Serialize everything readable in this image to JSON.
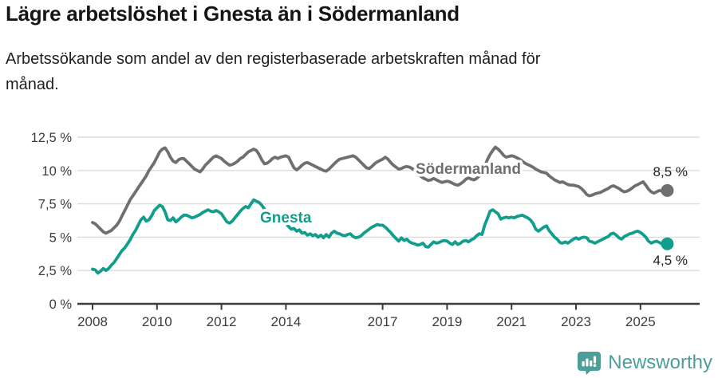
{
  "header": {
    "title": "Lägre arbetslöshet i Gnesta än i Södermanland",
    "subtitle": "Arbetssökande som andel av den registerbaserade arbetskraften månad för månad."
  },
  "footer": {
    "brand": "Newsworthy",
    "brand_color": "#4d9e99",
    "logo_icon": "bar-chart-speech-bubble-icon"
  },
  "chart_data": {
    "type": "line",
    "title": "Lägre arbetslöshet i Gnesta än i Södermanland",
    "subtitle": "Arbetssökande som andel av den registerbaserade arbetskraften månad för månad.",
    "x_unit": "month",
    "x_start": "2008-01",
    "x_end": "2025-11",
    "x_tick_years": [
      2008,
      2010,
      2012,
      2014,
      2017,
      2019,
      2021,
      2023,
      2025
    ],
    "x_tick_labels": [
      "2008",
      "2010",
      "2012",
      "2014",
      "2017",
      "2019",
      "2021",
      "2023",
      "2025"
    ],
    "ylim": [
      0,
      12.5
    ],
    "y_tick_values": [
      0,
      2.5,
      5,
      7.5,
      10,
      12.5
    ],
    "y_tick_labels": [
      "0 %",
      "2,5 %",
      "5 %",
      "7,5 %",
      "10 %",
      "12,5 %"
    ],
    "grid": true,
    "legend": "inline-labels",
    "axis_color": "#3c3c3e",
    "grid_color": "#dcdcdc",
    "value_label_color": "#222222",
    "series": [
      {
        "name": "Södermanland",
        "color": "#6e6f72",
        "end_label": "8,5 %",
        "end_value": 8.5,
        "values": [
          6.1,
          6.0,
          5.8,
          5.6,
          5.4,
          5.3,
          5.4,
          5.5,
          5.7,
          5.9,
          6.2,
          6.6,
          7.0,
          7.4,
          7.8,
          8.1,
          8.4,
          8.7,
          9.0,
          9.3,
          9.6,
          10.0,
          10.3,
          10.6,
          11.0,
          11.4,
          11.6,
          11.7,
          11.4,
          11.0,
          10.7,
          10.6,
          10.8,
          10.9,
          10.9,
          10.7,
          10.5,
          10.3,
          10.1,
          10.0,
          9.9,
          10.1,
          10.4,
          10.6,
          10.8,
          11.0,
          11.1,
          11.0,
          10.9,
          10.7,
          10.55,
          10.4,
          10.45,
          10.55,
          10.7,
          10.9,
          11.0,
          11.2,
          11.4,
          11.5,
          11.6,
          11.5,
          11.2,
          10.8,
          10.5,
          10.55,
          10.7,
          10.9,
          11.0,
          10.9,
          11.0,
          11.05,
          11.1,
          11.0,
          10.6,
          10.2,
          10.05,
          10.2,
          10.4,
          10.55,
          10.6,
          10.5,
          10.4,
          10.3,
          10.2,
          10.1,
          10.0,
          9.95,
          10.1,
          10.3,
          10.5,
          10.7,
          10.85,
          10.9,
          10.95,
          11.0,
          11.05,
          11.1,
          11.0,
          10.8,
          10.6,
          10.4,
          10.2,
          10.15,
          10.3,
          10.5,
          10.65,
          10.75,
          10.85,
          11.0,
          10.85,
          10.6,
          10.4,
          10.25,
          10.1,
          10.15,
          10.25,
          10.3,
          10.25,
          10.15,
          10.0,
          9.8,
          9.6,
          9.45,
          9.35,
          9.25,
          9.3,
          9.4,
          9.3,
          9.2,
          9.1,
          9.15,
          9.2,
          9.15,
          9.05,
          8.95,
          8.9,
          9.0,
          9.15,
          9.35,
          9.45,
          9.35,
          9.3,
          9.4,
          9.6,
          9.9,
          10.3,
          10.8,
          11.2,
          11.5,
          11.75,
          11.6,
          11.4,
          11.15,
          11.0,
          11.05,
          11.1,
          11.05,
          10.95,
          10.85,
          10.7,
          10.55,
          10.45,
          10.35,
          10.25,
          10.1,
          10.0,
          9.9,
          9.85,
          9.8,
          9.6,
          9.45,
          9.3,
          9.2,
          9.1,
          9.15,
          9.05,
          8.95,
          8.9,
          8.9,
          8.85,
          8.8,
          8.65,
          8.45,
          8.2,
          8.1,
          8.15,
          8.25,
          8.3,
          8.35,
          8.45,
          8.55,
          8.65,
          8.8,
          8.85,
          8.75,
          8.65,
          8.5,
          8.4,
          8.45,
          8.55,
          8.7,
          8.85,
          8.95,
          9.05,
          9.15,
          8.9,
          8.6,
          8.4,
          8.3,
          8.4,
          8.5,
          8.45,
          8.4,
          8.5
        ]
      },
      {
        "name": "Gnesta",
        "color": "#119e8c",
        "end_label": "4,5 %",
        "end_value": 4.5,
        "values": [
          2.6,
          2.55,
          2.3,
          2.45,
          2.65,
          2.5,
          2.65,
          2.9,
          3.1,
          3.4,
          3.7,
          4.0,
          4.2,
          4.5,
          4.8,
          5.2,
          5.5,
          5.9,
          6.3,
          6.5,
          6.2,
          6.3,
          6.6,
          7.0,
          7.2,
          7.4,
          7.3,
          6.9,
          6.3,
          6.25,
          6.45,
          6.15,
          6.3,
          6.5,
          6.65,
          6.65,
          6.55,
          6.45,
          6.5,
          6.6,
          6.7,
          6.85,
          6.95,
          7.05,
          6.95,
          6.9,
          7.0,
          6.9,
          6.75,
          6.45,
          6.15,
          6.05,
          6.2,
          6.45,
          6.7,
          6.95,
          7.15,
          7.3,
          7.2,
          7.5,
          7.8,
          7.7,
          7.6,
          7.4,
          7.1,
          6.85,
          6.7,
          6.6,
          6.45,
          6.3,
          6.2,
          6.1,
          6.0,
          5.8,
          5.6,
          5.65,
          5.45,
          5.55,
          5.3,
          5.35,
          5.15,
          5.25,
          5.1,
          5.2,
          5.0,
          5.15,
          4.95,
          5.2,
          5.0,
          5.3,
          5.45,
          5.3,
          5.25,
          5.15,
          5.1,
          5.2,
          5.25,
          5.05,
          4.95,
          5.0,
          5.1,
          5.3,
          5.45,
          5.6,
          5.75,
          5.85,
          5.95,
          5.9,
          5.9,
          5.75,
          5.55,
          5.35,
          5.1,
          4.9,
          4.7,
          4.95,
          4.75,
          4.85,
          4.65,
          4.55,
          4.5,
          4.4,
          4.45,
          4.55,
          4.3,
          4.25,
          4.45,
          4.65,
          4.55,
          4.6,
          4.7,
          4.75,
          4.7,
          4.55,
          4.45,
          4.65,
          4.45,
          4.55,
          4.7,
          4.75,
          4.65,
          4.8,
          4.9,
          5.1,
          5.25,
          5.2,
          5.9,
          6.4,
          6.95,
          7.05,
          6.9,
          6.75,
          6.35,
          6.45,
          6.5,
          6.45,
          6.5,
          6.45,
          6.55,
          6.6,
          6.65,
          6.55,
          6.45,
          6.3,
          6.05,
          5.6,
          5.45,
          5.6,
          5.75,
          5.85,
          5.5,
          5.25,
          5.0,
          4.85,
          4.6,
          4.55,
          4.65,
          4.55,
          4.7,
          4.85,
          4.95,
          4.85,
          4.95,
          5.0,
          4.95,
          4.7,
          4.65,
          4.55,
          4.65,
          4.75,
          4.85,
          4.95,
          5.05,
          5.25,
          5.3,
          5.15,
          4.95,
          4.85,
          5.05,
          5.15,
          5.25,
          5.3,
          5.4,
          5.45,
          5.35,
          5.2,
          5.0,
          4.7,
          4.55,
          4.65,
          4.7,
          4.6,
          4.5,
          4.45,
          4.5
        ]
      }
    ]
  }
}
